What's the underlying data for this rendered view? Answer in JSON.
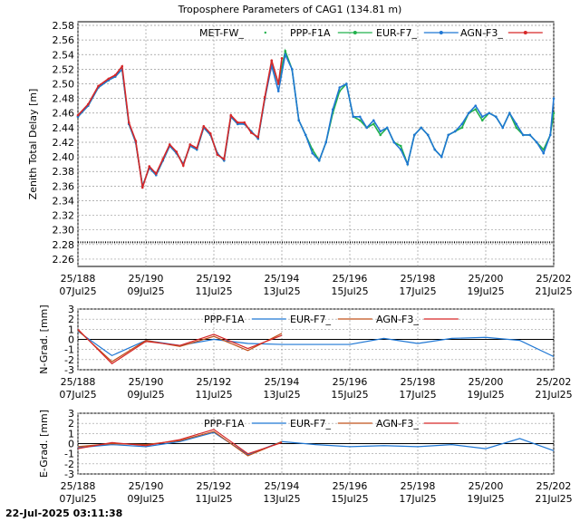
{
  "title": "Troposphere Parameters of CAG1 (134.81 m)",
  "timestamp": "22-Jul-2025 03:11:38",
  "chart_data": [
    {
      "type": "line",
      "ylabel": "Zenith Total Delay [m]",
      "ylim": [
        2.25,
        2.585
      ],
      "yticks": [
        2.26,
        2.28,
        2.3,
        2.32,
        2.34,
        2.36,
        2.38,
        2.4,
        2.42,
        2.44,
        2.46,
        2.48,
        2.5,
        2.52,
        2.54,
        2.56,
        2.58
      ],
      "xlim": [
        188,
        202
      ],
      "xticks": [
        {
          "x": 188,
          "l1": "25/188",
          "l2": "07Jul25"
        },
        {
          "x": 190,
          "l1": "25/190",
          "l2": "09Jul25"
        },
        {
          "x": 192,
          "l1": "25/192",
          "l2": "11Jul25"
        },
        {
          "x": 194,
          "l1": "25/194",
          "l2": "13Jul25"
        },
        {
          "x": 196,
          "l1": "25/196",
          "l2": "15Jul25"
        },
        {
          "x": 198,
          "l1": "25/198",
          "l2": "17Jul25"
        },
        {
          "x": 200,
          "l1": "25/200",
          "l2": "19Jul25"
        },
        {
          "x": 202,
          "l1": "25/202",
          "l2": "21Jul25"
        }
      ],
      "grid": true,
      "legend": "top",
      "series": [
        {
          "name": "MET-FW_",
          "color": "#000000",
          "marker": "dots",
          "x": [
            188,
            202
          ],
          "y": [
            2.283,
            2.283
          ]
        },
        {
          "name": "PPP-F1A",
          "color": "#22b14c",
          "marker": "dots",
          "x": [
            188,
            188.3,
            188.6,
            188.9,
            189.1,
            189.3,
            189.5,
            189.7,
            189.9,
            190.1,
            190.3,
            190.5,
            190.7,
            190.9,
            191.1,
            191.3,
            191.5,
            191.7,
            191.9,
            192.1,
            192.3,
            192.5,
            192.7,
            192.9,
            193.1,
            193.3,
            193.5,
            193.7,
            193.9,
            194.1,
            194.3,
            194.5,
            194.7,
            194.9,
            195.1,
            195.3,
            195.5,
            195.7,
            195.9,
            196.1,
            196.3,
            196.5,
            196.7,
            196.9,
            197.1,
            197.3,
            197.5,
            197.7,
            197.9,
            198.1,
            198.3,
            198.5,
            198.7,
            198.9,
            199.1,
            199.3,
            199.5,
            199.7,
            199.9,
            200.1,
            200.3,
            200.5,
            200.7,
            200.9,
            201.1,
            201.3,
            201.5,
            201.7,
            201.9,
            202
          ],
          "y": [
            2.455,
            2.47,
            2.495,
            2.505,
            2.51,
            2.52,
            2.445,
            2.42,
            2.36,
            2.385,
            2.375,
            2.395,
            2.415,
            2.405,
            2.39,
            2.415,
            2.41,
            2.44,
            2.43,
            2.405,
            2.395,
            2.455,
            2.445,
            2.445,
            2.435,
            2.425,
            2.48,
            2.53,
            2.5,
            2.545,
            2.52,
            2.45,
            2.43,
            2.41,
            2.395,
            2.42,
            2.46,
            2.49,
            2.5,
            2.455,
            2.45,
            2.44,
            2.445,
            2.43,
            2.44,
            2.42,
            2.415,
            2.39,
            2.43,
            2.44,
            2.43,
            2.41,
            2.4,
            2.43,
            2.435,
            2.44,
            2.46,
            2.465,
            2.45,
            2.46,
            2.455,
            2.44,
            2.46,
            2.44,
            2.43,
            2.43,
            2.42,
            2.41,
            2.43,
            2.46
          ]
        },
        {
          "name": "EUR-F7_",
          "color": "#1f77d4",
          "marker": "dots",
          "x": [
            188,
            188.3,
            188.6,
            188.9,
            189.1,
            189.3,
            189.5,
            189.7,
            189.9,
            190.1,
            190.3,
            190.5,
            190.7,
            190.9,
            191.1,
            191.3,
            191.5,
            191.7,
            191.9,
            192.1,
            192.3,
            192.5,
            192.7,
            192.9,
            193.1,
            193.3,
            193.5,
            193.7,
            193.9,
            194.1,
            194.3,
            194.5,
            194.7,
            194.9,
            195.1,
            195.3,
            195.5,
            195.7,
            195.9,
            196.1,
            196.3,
            196.5,
            196.7,
            196.9,
            197.1,
            197.3,
            197.5,
            197.7,
            197.9,
            198.1,
            198.3,
            198.5,
            198.7,
            198.9,
            199.1,
            199.3,
            199.5,
            199.7,
            199.9,
            200.1,
            200.3,
            200.5,
            200.7,
            200.9,
            201.1,
            201.3,
            201.5,
            201.7,
            201.9,
            202
          ],
          "y": [
            2.455,
            2.47,
            2.495,
            2.505,
            2.51,
            2.52,
            2.445,
            2.42,
            2.36,
            2.385,
            2.375,
            2.395,
            2.415,
            2.405,
            2.39,
            2.415,
            2.41,
            2.44,
            2.43,
            2.405,
            2.395,
            2.455,
            2.445,
            2.445,
            2.435,
            2.425,
            2.48,
            2.525,
            2.49,
            2.54,
            2.52,
            2.45,
            2.43,
            2.405,
            2.395,
            2.42,
            2.465,
            2.495,
            2.5,
            2.455,
            2.455,
            2.44,
            2.45,
            2.435,
            2.44,
            2.42,
            2.41,
            2.39,
            2.43,
            2.44,
            2.43,
            2.41,
            2.4,
            2.43,
            2.435,
            2.445,
            2.46,
            2.47,
            2.455,
            2.46,
            2.455,
            2.44,
            2.46,
            2.445,
            2.43,
            2.43,
            2.42,
            2.405,
            2.43,
            2.48
          ]
        },
        {
          "name": "AGN-F3_",
          "color": "#d62728",
          "marker": "dots",
          "x": [
            188,
            188.3,
            188.6,
            188.9,
            189.1,
            189.3,
            189.5,
            189.7,
            189.9,
            190.1,
            190.3,
            190.5,
            190.7,
            190.9,
            191.1,
            191.3,
            191.5,
            191.7,
            191.9,
            192.1,
            192.3,
            192.5,
            192.7,
            192.9,
            193.1,
            193.3,
            193.5,
            193.7,
            193.9,
            194.0
          ],
          "y": [
            2.457,
            2.472,
            2.497,
            2.507,
            2.512,
            2.524,
            2.447,
            2.422,
            2.358,
            2.387,
            2.377,
            2.397,
            2.417,
            2.407,
            2.388,
            2.417,
            2.412,
            2.442,
            2.432,
            2.403,
            2.397,
            2.457,
            2.447,
            2.447,
            2.433,
            2.427,
            2.482,
            2.532,
            2.5,
            2.535
          ]
        }
      ]
    },
    {
      "type": "line",
      "ylabel": "N-Grad. [mm]",
      "ylim": [
        -3,
        3
      ],
      "yticks": [
        -3,
        -2,
        -1,
        0,
        1,
        2,
        3
      ],
      "xlim": [
        188,
        202
      ],
      "xticks": [
        {
          "x": 188,
          "l1": "25/188",
          "l2": "07Jul25"
        },
        {
          "x": 190,
          "l1": "25/190",
          "l2": "09Jul25"
        },
        {
          "x": 192,
          "l1": "25/192",
          "l2": "11Jul25"
        },
        {
          "x": 194,
          "l1": "25/194",
          "l2": "13Jul25"
        },
        {
          "x": 196,
          "l1": "25/196",
          "l2": "15Jul25"
        },
        {
          "x": 198,
          "l1": "25/198",
          "l2": "17Jul25"
        },
        {
          "x": 200,
          "l1": "25/200",
          "l2": "19Jul25"
        },
        {
          "x": 202,
          "l1": "25/202",
          "l2": "21Jul25"
        }
      ],
      "grid": true,
      "legend": "top",
      "series": [
        {
          "name": "PPP-F1A",
          "color": "#1f77d4",
          "x": [
            188,
            189,
            190,
            191,
            192,
            193,
            194,
            195,
            196,
            197,
            198,
            199,
            200,
            201,
            202
          ],
          "y": [
            0.8,
            -1.6,
            -0.1,
            -0.6,
            0.0,
            -0.4,
            -0.5,
            -0.5,
            -0.5,
            0.1,
            -0.4,
            0.1,
            0.2,
            -0.1,
            -1.7
          ]
        },
        {
          "name": "EUR-F7_",
          "color": "#c0501a",
          "x": [
            188,
            189,
            190,
            191,
            192,
            193,
            194
          ],
          "y": [
            0.9,
            -2.2,
            -0.1,
            -0.7,
            0.3,
            -1.1,
            0.6
          ]
        },
        {
          "name": "AGN-F3_",
          "color": "#d62728",
          "x": [
            188,
            189,
            190,
            191,
            192,
            193,
            194
          ],
          "y": [
            1.0,
            -2.4,
            -0.2,
            -0.6,
            0.5,
            -0.9,
            0.4
          ]
        }
      ]
    },
    {
      "type": "line",
      "ylabel": "E-Grad. [mm]",
      "ylim": [
        -3,
        3
      ],
      "yticks": [
        -3,
        -2,
        -1,
        0,
        1,
        2,
        3
      ],
      "xlim": [
        188,
        202
      ],
      "xticks": [
        {
          "x": 188,
          "l1": "25/188",
          "l2": "07Jul25"
        },
        {
          "x": 190,
          "l1": "25/190",
          "l2": "09Jul25"
        },
        {
          "x": 192,
          "l1": "25/192",
          "l2": "11Jul25"
        },
        {
          "x": 194,
          "l1": "25/194",
          "l2": "13Jul25"
        },
        {
          "x": 196,
          "l1": "25/196",
          "l2": "15Jul25"
        },
        {
          "x": 198,
          "l1": "25/198",
          "l2": "17Jul25"
        },
        {
          "x": 200,
          "l1": "25/200",
          "l2": "19Jul25"
        },
        {
          "x": 202,
          "l1": "25/202",
          "l2": "21Jul25"
        }
      ],
      "grid": true,
      "legend": "top",
      "series": [
        {
          "name": "PPP-F1A",
          "color": "#1f77d4",
          "x": [
            188,
            189,
            190,
            191,
            192,
            193,
            194,
            195,
            196,
            197,
            198,
            199,
            200,
            201,
            202
          ],
          "y": [
            -0.4,
            -0.1,
            -0.3,
            0.2,
            1.1,
            -1.1,
            0.2,
            -0.1,
            -0.3,
            -0.2,
            -0.3,
            -0.1,
            -0.5,
            0.5,
            -0.7
          ]
        },
        {
          "name": "EUR-F7_",
          "color": "#c0501a",
          "x": [
            188,
            189,
            190,
            191,
            192,
            193,
            194
          ],
          "y": [
            -0.3,
            0.0,
            -0.1,
            0.3,
            1.2,
            -1.2,
            0.2
          ]
        },
        {
          "name": "AGN-F3_",
          "color": "#d62728",
          "x": [
            188,
            189,
            190,
            191,
            192,
            193,
            194
          ],
          "y": [
            -0.5,
            0.1,
            -0.2,
            0.4,
            1.4,
            -1.0,
            0.1
          ]
        }
      ]
    }
  ]
}
